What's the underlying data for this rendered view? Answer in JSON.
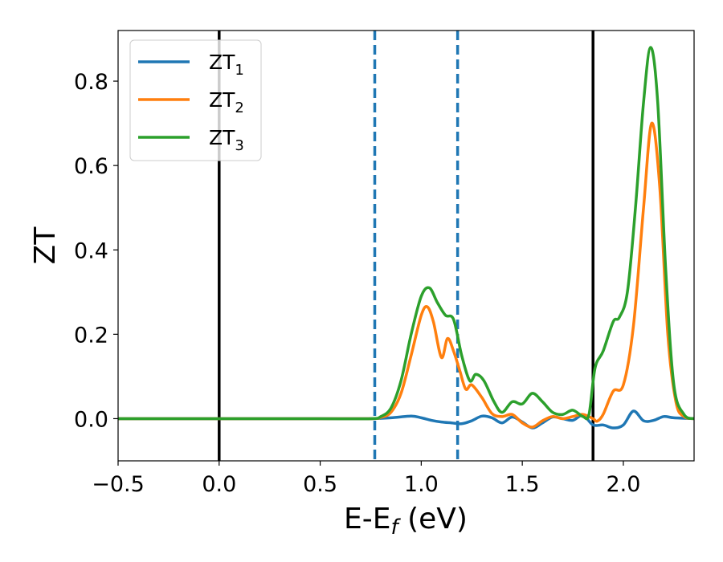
{
  "chart_data": {
    "type": "line",
    "title": "",
    "xlabel": {
      "main": "E-E",
      "sub": "f",
      "unit": " (eV)"
    },
    "ylabel": "ZT",
    "xlim": [
      -0.5,
      2.35
    ],
    "ylim": [
      -0.1,
      0.92
    ],
    "xticks": [
      {
        "value": -0.5,
        "label": "−0.5"
      },
      {
        "value": 0.0,
        "label": "0.0"
      },
      {
        "value": 0.5,
        "label": "0.5"
      },
      {
        "value": 1.0,
        "label": "1.0"
      },
      {
        "value": 1.5,
        "label": "1.5"
      },
      {
        "value": 2.0,
        "label": "2.0"
      }
    ],
    "yticks": [
      {
        "value": 0.0,
        "label": "0.0"
      },
      {
        "value": 0.2,
        "label": "0.2"
      },
      {
        "value": 0.4,
        "label": "0.4"
      },
      {
        "value": 0.6,
        "label": "0.6"
      },
      {
        "value": 0.8,
        "label": "0.8"
      }
    ],
    "grid": false,
    "legend": {
      "position": "top-left",
      "entries": [
        {
          "main": "ZT",
          "sub": "1",
          "color": "#1f77b4"
        },
        {
          "main": "ZT",
          "sub": "2",
          "color": "#ff7f0e"
        },
        {
          "main": "ZT",
          "sub": "3",
          "color": "#2ca02c"
        }
      ]
    },
    "vlines": [
      {
        "x": 0.0,
        "style": "solid",
        "color": "#000000"
      },
      {
        "x": 1.85,
        "style": "solid",
        "color": "#000000"
      },
      {
        "x": 0.77,
        "style": "dashed",
        "color": "#1f77b4"
      },
      {
        "x": 1.18,
        "style": "dashed",
        "color": "#1f77b4"
      }
    ],
    "series": [
      {
        "name": "ZT1",
        "color": "#1f77b4",
        "x": [
          -0.5,
          0.0,
          0.5,
          0.75,
          0.85,
          0.95,
          1.0,
          1.05,
          1.1,
          1.15,
          1.2,
          1.25,
          1.3,
          1.35,
          1.4,
          1.45,
          1.5,
          1.55,
          1.6,
          1.65,
          1.7,
          1.75,
          1.8,
          1.85,
          1.9,
          1.95,
          2.0,
          2.05,
          2.1,
          2.15,
          2.2,
          2.25,
          2.35
        ],
        "y": [
          0.0,
          0.0,
          0.0,
          0.0,
          0.002,
          0.006,
          0.002,
          -0.004,
          -0.008,
          -0.01,
          -0.012,
          -0.005,
          0.006,
          0.002,
          -0.01,
          0.004,
          -0.008,
          -0.022,
          -0.01,
          0.004,
          0.0,
          -0.004,
          0.008,
          -0.015,
          -0.015,
          -0.022,
          -0.015,
          0.018,
          -0.005,
          -0.004,
          0.005,
          0.002,
          0.0
        ]
      },
      {
        "name": "ZT2",
        "color": "#ff7f0e",
        "x": [
          -0.5,
          0.0,
          0.5,
          0.75,
          0.8,
          0.85,
          0.9,
          0.95,
          1.0,
          1.03,
          1.06,
          1.1,
          1.13,
          1.16,
          1.19,
          1.22,
          1.25,
          1.3,
          1.35,
          1.4,
          1.45,
          1.5,
          1.55,
          1.6,
          1.65,
          1.7,
          1.75,
          1.8,
          1.85,
          1.87,
          1.9,
          1.95,
          2.0,
          2.05,
          2.1,
          2.14,
          2.18,
          2.22,
          2.26,
          2.3,
          2.35
        ],
        "y": [
          0.0,
          0.0,
          0.0,
          0.0,
          0.003,
          0.015,
          0.06,
          0.15,
          0.245,
          0.265,
          0.23,
          0.145,
          0.19,
          0.16,
          0.115,
          0.07,
          0.08,
          0.05,
          0.012,
          0.005,
          0.01,
          -0.01,
          -0.02,
          -0.005,
          0.005,
          0.0,
          0.005,
          0.01,
          0.0,
          -0.006,
          0.01,
          0.065,
          0.08,
          0.22,
          0.5,
          0.7,
          0.55,
          0.2,
          0.04,
          0.005,
          0.0
        ]
      },
      {
        "name": "ZT3",
        "color": "#2ca02c",
        "x": [
          -0.5,
          0.0,
          0.5,
          0.75,
          0.8,
          0.85,
          0.9,
          0.95,
          1.0,
          1.04,
          1.08,
          1.12,
          1.16,
          1.2,
          1.24,
          1.27,
          1.31,
          1.36,
          1.4,
          1.45,
          1.5,
          1.55,
          1.6,
          1.65,
          1.7,
          1.75,
          1.8,
          1.83,
          1.86,
          1.9,
          1.95,
          1.98,
          2.02,
          2.06,
          2.1,
          2.135,
          2.17,
          2.21,
          2.25,
          2.3,
          2.35
        ],
        "y": [
          0.0,
          0.0,
          0.0,
          0.0,
          0.005,
          0.025,
          0.09,
          0.2,
          0.29,
          0.31,
          0.275,
          0.245,
          0.235,
          0.15,
          0.09,
          0.105,
          0.09,
          0.04,
          0.015,
          0.04,
          0.035,
          0.06,
          0.04,
          0.015,
          0.01,
          0.02,
          0.005,
          0.01,
          0.12,
          0.16,
          0.23,
          0.24,
          0.3,
          0.5,
          0.75,
          0.88,
          0.75,
          0.35,
          0.08,
          0.01,
          0.0
        ]
      }
    ]
  }
}
